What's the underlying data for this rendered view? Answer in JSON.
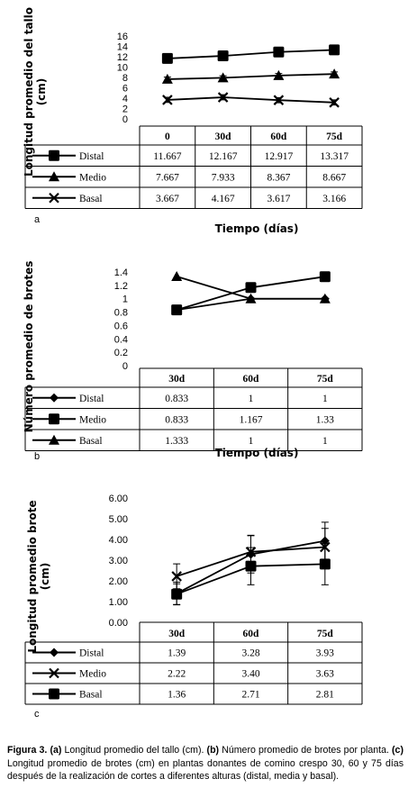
{
  "chart_data": [
    {
      "panel": "a",
      "type": "line",
      "ylabel": "Longitud promedio del tallo (cm)",
      "xlabel": "Tiempo (días)",
      "categories": [
        "0",
        "30d",
        "60d",
        "75d"
      ],
      "ylim": [
        0,
        16
      ],
      "yticks": [
        "0",
        "2",
        "4",
        "6",
        "8",
        "10",
        "12",
        "14",
        "16"
      ],
      "series": [
        {
          "name": "Distal",
          "marker": "square",
          "values": [
            11.667,
            12.167,
            12.917,
            13.317
          ],
          "labels": [
            "11.667",
            "12.167",
            "12.917",
            "13.317"
          ],
          "errors": [
            0.5,
            0.5,
            0.5,
            0.5
          ]
        },
        {
          "name": "Medio",
          "marker": "triangle",
          "values": [
            7.667,
            7.933,
            8.367,
            8.667
          ],
          "labels": [
            "7.667",
            "7.933",
            "8.367",
            "8.667"
          ],
          "errors": [
            0.4,
            0.4,
            0.4,
            0.4
          ]
        },
        {
          "name": "Basal",
          "marker": "x",
          "values": [
            3.667,
            4.167,
            3.617,
            3.166
          ],
          "labels": [
            "3.667",
            "4.167",
            "3.617",
            "3.166"
          ],
          "errors": [
            0.5,
            0.5,
            0.5,
            0.5
          ]
        }
      ]
    },
    {
      "panel": "b",
      "type": "line",
      "ylabel": "Número promedio de brotes",
      "xlabel": "Tiempo (días)",
      "categories": [
        "30d",
        "60d",
        "75d"
      ],
      "ylim": [
        0,
        1.4
      ],
      "yticks": [
        "0",
        "0.2",
        "0.4",
        "0.6",
        "0.8",
        "1",
        "1.2",
        "1.4"
      ],
      "series": [
        {
          "name": "Distal",
          "marker": "diamond",
          "values": [
            0.833,
            1,
            1
          ],
          "labels": [
            "0.833",
            "1",
            "1"
          ],
          "errors": []
        },
        {
          "name": "Medio",
          "marker": "square",
          "values": [
            0.833,
            1.167,
            1.33
          ],
          "labels": [
            "0.833",
            "1.167",
            "1.33"
          ],
          "errors": []
        },
        {
          "name": "Basal",
          "marker": "triangle",
          "values": [
            1.333,
            1,
            1
          ],
          "labels": [
            "1.333",
            "1",
            "1"
          ],
          "errors": []
        }
      ]
    },
    {
      "panel": "c",
      "type": "line",
      "ylabel": "Longitud promedio brote (cm)",
      "xlabel": "",
      "categories": [
        "30d",
        "60d",
        "75d"
      ],
      "ylim": [
        0,
        6
      ],
      "yticks": [
        "0.00",
        "1.00",
        "2.00",
        "3.00",
        "4.00",
        "5.00",
        "6.00"
      ],
      "series": [
        {
          "name": "Distal",
          "marker": "diamond",
          "values": [
            1.39,
            3.28,
            3.93
          ],
          "labels": [
            "1.39",
            "3.28",
            "3.93"
          ],
          "errors": [
            0.55,
            0.9,
            0.9
          ]
        },
        {
          "name": "Medio",
          "marker": "x",
          "values": [
            2.22,
            3.4,
            3.63
          ],
          "labels": [
            "2.22",
            "3.40",
            "3.63"
          ],
          "errors": [
            0.6,
            0.8,
            0.9
          ]
        },
        {
          "name": "Basal",
          "marker": "square",
          "values": [
            1.36,
            2.71,
            2.81
          ],
          "labels": [
            "1.36",
            "2.71",
            "2.81"
          ],
          "errors": [
            0.5,
            0.9,
            1.0
          ]
        }
      ]
    }
  ],
  "caption": {
    "figure_label": "Figura 3.",
    "a_label": "(a)",
    "a_text": "Longitud promedio del tallo (cm).",
    "b_label": "(b)",
    "b_text": "Número promedio de brotes por planta.",
    "c_label": "(c)",
    "c_text": "Longitud promedio de brotes (cm) en plantas donantes de comino crespo 30, 60 y 75 días después de la realización de cortes a diferentes alturas (distal, media y basal)."
  }
}
